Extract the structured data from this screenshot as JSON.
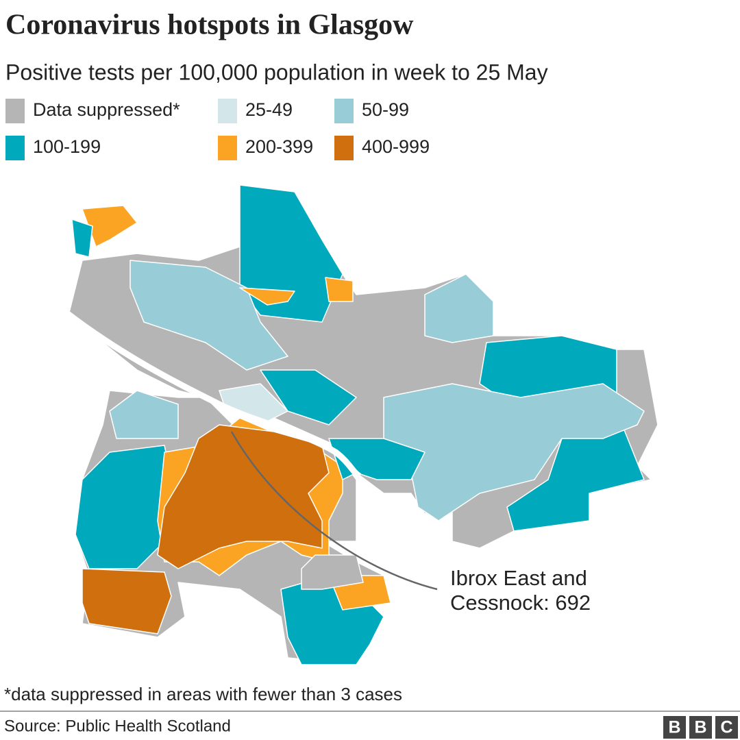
{
  "header": {
    "title": "Coronavirus hotspots in Glasgow",
    "subtitle": "Positive tests per 100,000 population in week to 25 May"
  },
  "legend": [
    {
      "label": "Data suppressed*",
      "color": "#b5b5b5"
    },
    {
      "label": "25-49",
      "color": "#d3e6ea"
    },
    {
      "label": "50-99",
      "color": "#98ccd7"
    },
    {
      "label": "100-199",
      "color": "#00a9bb"
    },
    {
      "label": "200-399",
      "color": "#fba424"
    },
    {
      "label": "400-999",
      "color": "#d06f0e"
    }
  ],
  "annotation": [
    "Ibrox East and",
    "Cessnock: 692"
  ],
  "footnote": "*data suppressed in areas with fewer than 3 cases",
  "source": "Source: Public Health Scotland",
  "logo": [
    "B",
    "B",
    "C"
  ]
}
